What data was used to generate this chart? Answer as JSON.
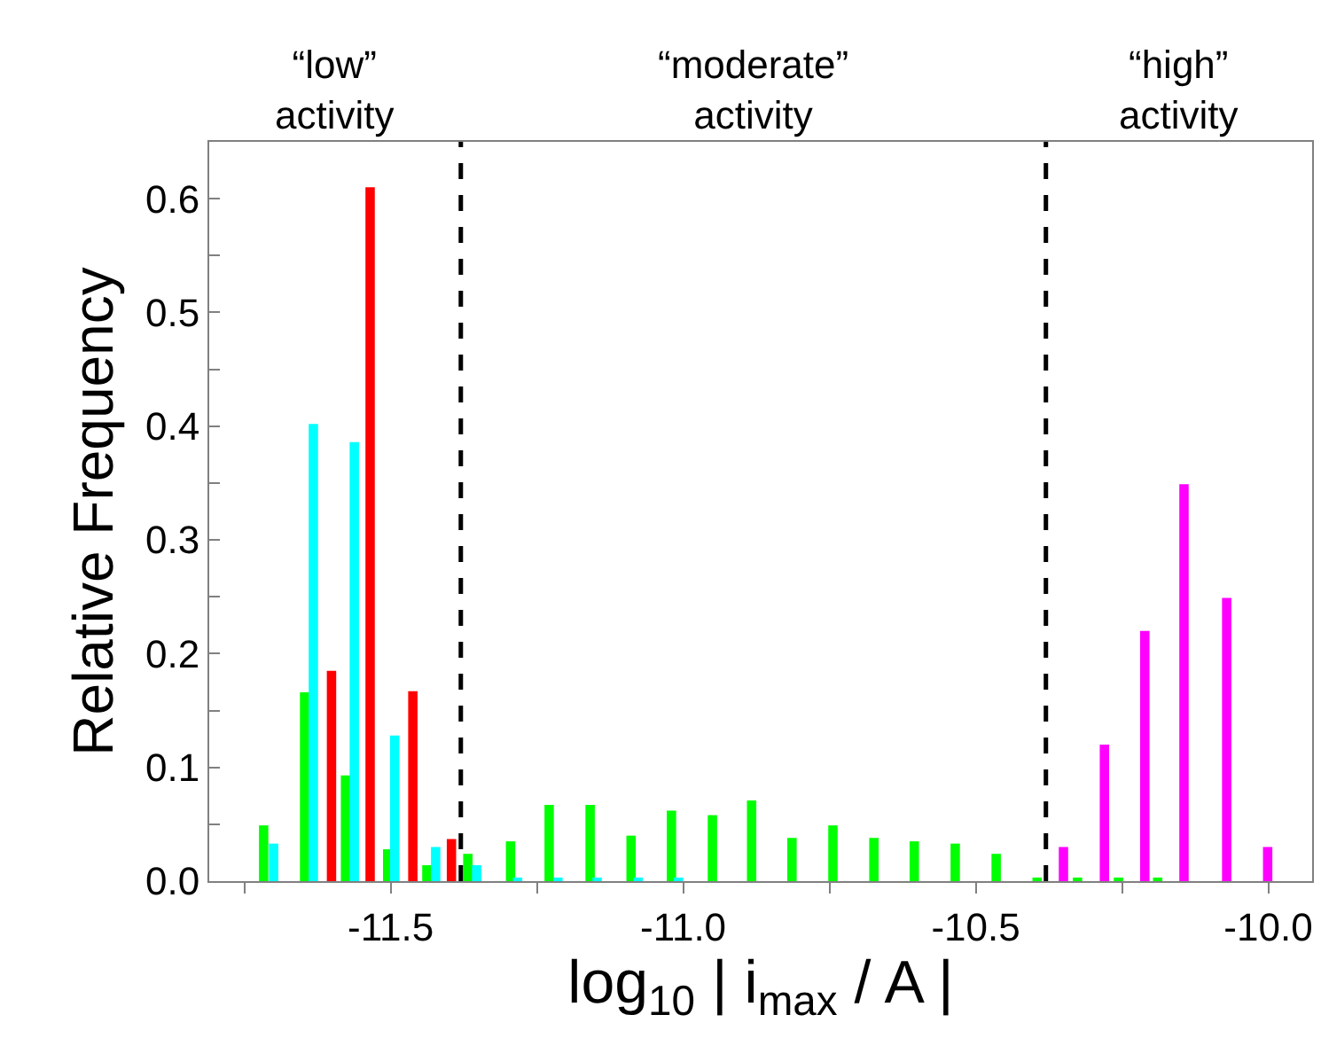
{
  "chart_data": {
    "type": "bar",
    "xlabel": "log$_{10}$ | i$_{max}$ / A |",
    "ylabel": "Relative Frequency",
    "series": [
      {
        "color": "#00ff00",
        "x": [
          -11.717,
          -11.647,
          -11.577,
          -11.505,
          -11.438,
          -11.368,
          -11.295,
          -11.229,
          -11.159,
          -11.089,
          -11.02,
          -10.95,
          -10.883,
          -10.814,
          -10.744,
          -10.674,
          -10.605,
          -10.535,
          -10.465,
          -10.395,
          -10.326,
          -10.256,
          -10.189
        ],
        "values": [
          0.049,
          0.166,
          0.093,
          0.028,
          0.014,
          0.024,
          0.035,
          0.067,
          0.067,
          0.04,
          0.062,
          0.058,
          0.071,
          0.038,
          0.049,
          0.038,
          0.035,
          0.033,
          0.024,
          0.002,
          0.003,
          0.003,
          0.003
        ]
      },
      {
        "color": "#00ffff",
        "x": [
          -11.7,
          -11.632,
          -11.562,
          -11.493,
          -11.423,
          -11.353,
          -11.283,
          -11.214,
          -11.147,
          -11.077,
          -11.008
        ],
        "values": [
          0.033,
          0.402,
          0.386,
          0.128,
          0.03,
          0.014,
          0.003,
          0.003,
          0.003,
          0.003,
          0.003
        ]
      },
      {
        "color": "#ff0000",
        "x": [
          -11.601,
          -11.535,
          -11.462,
          -11.396
        ],
        "values": [
          0.185,
          0.61,
          0.167,
          0.037
        ]
      },
      {
        "color": "#ff00ff",
        "x": [
          -10.35,
          -10.28,
          -10.211,
          -10.144,
          -10.071,
          -10.001
        ],
        "values": [
          0.03,
          0.12,
          0.22,
          0.349,
          0.249,
          0.03
        ]
      }
    ],
    "xlim": [
      -11.81,
      -9.925
    ],
    "xticks": [
      {
        "value": -11.75,
        "label": null
      },
      -11.5,
      {
        "value": -11.25,
        "label": null
      },
      {
        "value": -11.0,
        "label": "-11.0"
      },
      {
        "value": -10.75,
        "label": null
      },
      -10.5,
      {
        "value": -10.25,
        "label": null
      },
      {
        "value": -10.0,
        "label": "-10.0"
      }
    ],
    "ylim": [
      0,
      0.65
    ],
    "yticks": [
      {
        "value": 0,
        "label": "0.0"
      },
      {
        "value": 0.05,
        "label": null
      },
      0.1,
      {
        "value": 0.15,
        "label": null
      },
      0.2,
      {
        "value": 0.25,
        "label": null
      },
      0.3,
      {
        "value": 0.35,
        "label": null
      },
      0.4,
      {
        "value": 0.45,
        "label": null
      },
      0.5,
      {
        "value": 0.55,
        "label": null
      },
      0.6
    ],
    "ref_lines": [
      {
        "axis": "x",
        "value": -11.38,
        "color": "#000000",
        "line_style": "dashed"
      },
      {
        "axis": "x",
        "value": -10.38,
        "color": "#000000",
        "line_style": "dashed"
      }
    ],
    "annotations": [
      "“low”\nactivity",
      "“moderate”\nactivity",
      "“high”\nactivity"
    ]
  }
}
